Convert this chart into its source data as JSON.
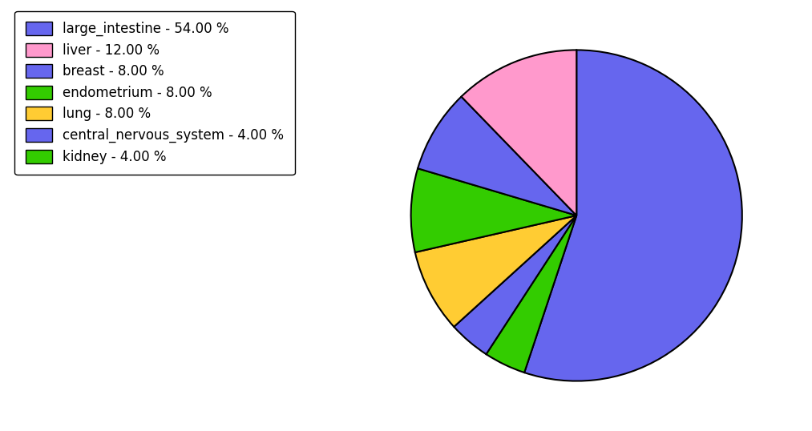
{
  "pie_values": [
    54,
    12,
    8,
    8,
    8,
    4,
    4
  ],
  "pie_colors": [
    "#6666ee",
    "#ff99cc",
    "#6666ee",
    "#33cc00",
    "#ffcc33",
    "#6666ee",
    "#33cc00"
  ],
  "pie_order_values": [
    54,
    12,
    8,
    8,
    8,
    4,
    4
  ],
  "pie_order_colors": [
    "#6666ee",
    "#ff99cc",
    "#6666ee",
    "#33cc00",
    "#ffcc33",
    "#6666ee",
    "#33cc00"
  ],
  "legend_labels": [
    "large_intestine - 54.00 %",
    "liver - 12.00 %",
    "breast - 8.00 %",
    "endometrium - 8.00 %",
    "lung - 8.00 %",
    "central_nervous_system - 4.00 %",
    "kidney - 4.00 %"
  ],
  "legend_colors": [
    "#6666ee",
    "#ff99cc",
    "#6666ee",
    "#33cc00",
    "#ffcc33",
    "#6666ee",
    "#33cc00"
  ],
  "startangle": 90,
  "figsize": [
    10.13,
    5.38
  ],
  "dpi": 100,
  "background_color": "#ffffff",
  "edgecolor": "black",
  "linewidth": 1.5,
  "legend_fontsize": 12
}
